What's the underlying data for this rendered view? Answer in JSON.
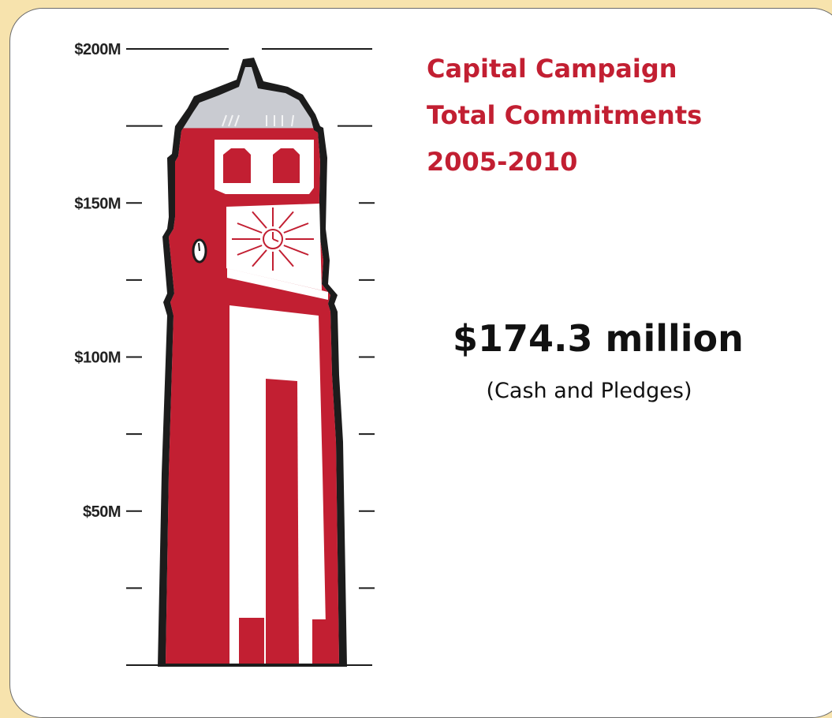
{
  "chart_data": {
    "type": "thermometer",
    "title": [
      "Capital Campaign",
      "Total Commitments",
      "2005-2010"
    ],
    "ylim": [
      0,
      200
    ],
    "ticks": [
      {
        "value": 200,
        "label": "$200M"
      },
      {
        "value": 175,
        "label": ""
      },
      {
        "value": 150,
        "label": "$150M"
      },
      {
        "value": 125,
        "label": ""
      },
      {
        "value": 100,
        "label": "$100M"
      },
      {
        "value": 75,
        "label": ""
      },
      {
        "value": 50,
        "label": "$50M"
      },
      {
        "value": 25,
        "label": ""
      }
    ],
    "value": 174.3,
    "value_label": "$174.3 million",
    "note": "(Cash and Pledges)",
    "colors": {
      "fill": "#c21f32",
      "unfilled": "#c9cbd1",
      "outline": "#1c1c1c",
      "title": "#c21f32"
    }
  }
}
